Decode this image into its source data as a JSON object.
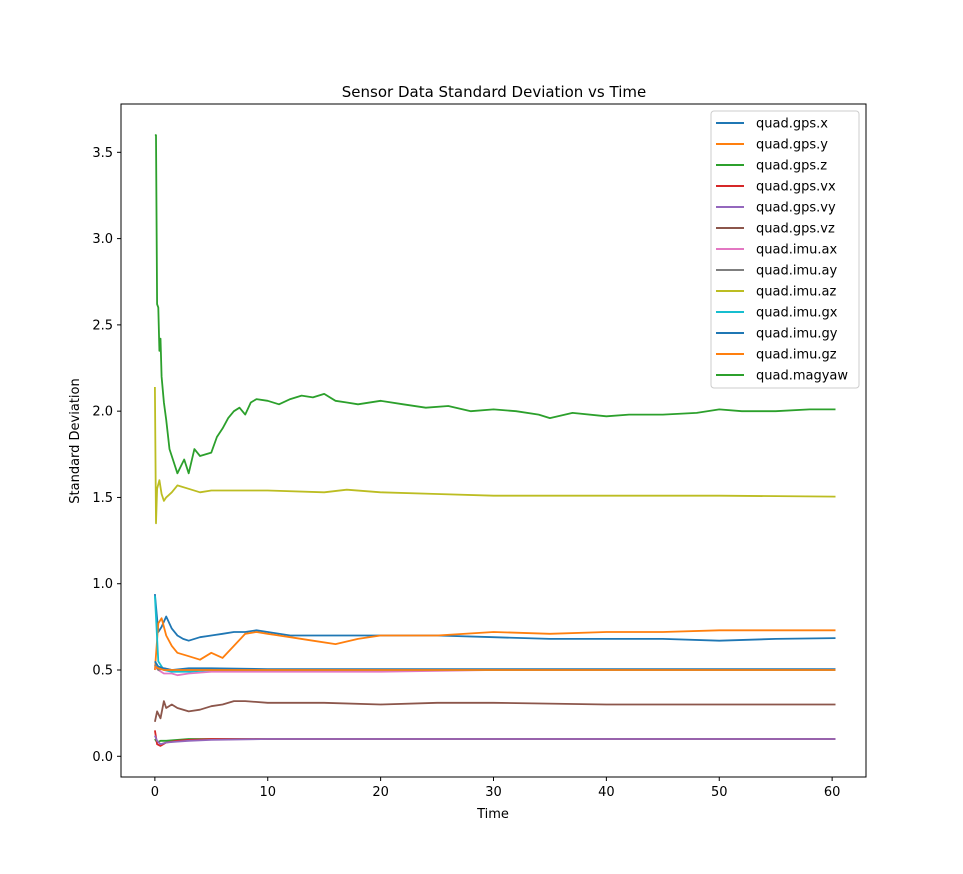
{
  "chart_data": {
    "type": "line",
    "title": "Sensor Data Standard Deviation vs Time",
    "xlabel": "Time",
    "ylabel": "Standard Deviation",
    "xlim": [
      -3,
      63
    ],
    "ylim": [
      -0.12,
      3.78
    ],
    "xticks": [
      0,
      10,
      20,
      30,
      40,
      50,
      60
    ],
    "yticks": [
      0.0,
      0.5,
      1.0,
      1.5,
      2.0,
      2.5,
      3.0,
      3.5
    ],
    "xtick_labels": [
      "0",
      "10",
      "20",
      "30",
      "40",
      "50",
      "60"
    ],
    "ytick_labels": [
      "0.0",
      "0.5",
      "1.0",
      "1.5",
      "2.0",
      "2.5",
      "3.0",
      "3.5"
    ],
    "grid": false,
    "legend_position": "top-right",
    "series": [
      {
        "name": "quad.gps.x",
        "color": "#1f77b4",
        "x": [
          0,
          0.3,
          0.6,
          1,
          1.5,
          2,
          2.5,
          3,
          4,
          5,
          6,
          7,
          8,
          9,
          10,
          12,
          15,
          20,
          25,
          30,
          35,
          40,
          45,
          50,
          55,
          60.3
        ],
        "y": [
          0.94,
          0.72,
          0.75,
          0.81,
          0.74,
          0.7,
          0.68,
          0.67,
          0.69,
          0.7,
          0.71,
          0.72,
          0.72,
          0.73,
          0.72,
          0.7,
          0.7,
          0.7,
          0.7,
          0.69,
          0.68,
          0.68,
          0.68,
          0.67,
          0.68,
          0.685
        ]
      },
      {
        "name": "quad.gps.y",
        "color": "#ff7f0e",
        "x": [
          0,
          0.3,
          0.6,
          1,
          1.5,
          2,
          3,
          4,
          5,
          6,
          7,
          8,
          9,
          10,
          12,
          14,
          16,
          18,
          20,
          25,
          30,
          35,
          40,
          45,
          50,
          55,
          60.3
        ],
        "y": [
          0.5,
          0.77,
          0.8,
          0.7,
          0.64,
          0.6,
          0.58,
          0.56,
          0.6,
          0.57,
          0.64,
          0.71,
          0.72,
          0.71,
          0.69,
          0.67,
          0.65,
          0.68,
          0.7,
          0.7,
          0.72,
          0.71,
          0.72,
          0.72,
          0.73,
          0.73,
          0.73
        ]
      },
      {
        "name": "quad.gps.z",
        "color": "#2ca02c",
        "x": [
          0,
          0.2,
          0.5,
          1,
          2,
          3,
          5,
          10,
          20,
          30,
          40,
          50,
          60.3
        ],
        "y": [
          0.1,
          0.08,
          0.09,
          0.09,
          0.095,
          0.1,
          0.1,
          0.1,
          0.1,
          0.1,
          0.1,
          0.1,
          0.1
        ]
      },
      {
        "name": "quad.gps.vx",
        "color": "#d62728",
        "x": [
          0,
          0.2,
          0.5,
          1,
          2,
          3,
          5,
          10,
          20,
          30,
          40,
          50,
          60.3
        ],
        "y": [
          0.15,
          0.07,
          0.06,
          0.08,
          0.09,
          0.095,
          0.1,
          0.1,
          0.1,
          0.1,
          0.1,
          0.1,
          0.1
        ]
      },
      {
        "name": "quad.gps.vy",
        "color": "#9467bd",
        "x": [
          0,
          0.2,
          0.5,
          1,
          2,
          3,
          5,
          10,
          20,
          30,
          40,
          50,
          60.3
        ],
        "y": [
          0.12,
          0.09,
          0.07,
          0.08,
          0.085,
          0.09,
          0.095,
          0.1,
          0.1,
          0.1,
          0.1,
          0.1,
          0.1
        ]
      },
      {
        "name": "quad.gps.vz",
        "color": "#8c564b",
        "x": [
          0,
          0.2,
          0.5,
          0.8,
          1,
          1.5,
          2,
          3,
          4,
          5,
          6,
          7,
          8,
          10,
          15,
          20,
          25,
          30,
          40,
          50,
          60.3
        ],
        "y": [
          0.2,
          0.26,
          0.22,
          0.32,
          0.28,
          0.3,
          0.28,
          0.26,
          0.27,
          0.29,
          0.3,
          0.32,
          0.32,
          0.31,
          0.31,
          0.3,
          0.31,
          0.31,
          0.3,
          0.3,
          0.3
        ]
      },
      {
        "name": "quad.imu.ax",
        "color": "#e377c2",
        "x": [
          0,
          0.3,
          0.8,
          1.5,
          2,
          3,
          5,
          10,
          20,
          30,
          40,
          50,
          60.3
        ],
        "y": [
          0.52,
          0.5,
          0.48,
          0.48,
          0.47,
          0.48,
          0.49,
          0.49,
          0.49,
          0.5,
          0.5,
          0.5,
          0.5
        ]
      },
      {
        "name": "quad.imu.ay",
        "color": "#7f7f7f",
        "x": [
          0,
          0.3,
          0.8,
          1.5,
          3,
          5,
          10,
          20,
          30,
          40,
          50,
          60.3
        ],
        "y": [
          0.53,
          0.5,
          0.51,
          0.5,
          0.5,
          0.5,
          0.5,
          0.5,
          0.5,
          0.5,
          0.5,
          0.5
        ]
      },
      {
        "name": "quad.imu.az",
        "color": "#bcbd22",
        "x": [
          0,
          0.1,
          0.2,
          0.4,
          0.6,
          0.8,
          1,
          1.5,
          2,
          3,
          4,
          5,
          7,
          10,
          15,
          17,
          20,
          25,
          30,
          40,
          50,
          60.3
        ],
        "y": [
          2.14,
          1.35,
          1.55,
          1.6,
          1.52,
          1.48,
          1.5,
          1.53,
          1.57,
          1.55,
          1.53,
          1.54,
          1.54,
          1.54,
          1.53,
          1.545,
          1.53,
          1.52,
          1.51,
          1.51,
          1.51,
          1.505
        ]
      },
      {
        "name": "quad.imu.gx",
        "color": "#17becf",
        "x": [
          0,
          0.3,
          0.8,
          1.5,
          3,
          5,
          10,
          20,
          30,
          40,
          50,
          60.3
        ],
        "y": [
          0.93,
          0.55,
          0.5,
          0.49,
          0.49,
          0.5,
          0.5,
          0.5,
          0.5,
          0.5,
          0.5,
          0.5
        ]
      },
      {
        "name": "quad.imu.gy",
        "color": "#1f77b4",
        "x": [
          0,
          0.3,
          0.8,
          1.5,
          3,
          5,
          10,
          20,
          30,
          40,
          50,
          60.3
        ],
        "y": [
          0.55,
          0.52,
          0.51,
          0.5,
          0.51,
          0.51,
          0.505,
          0.505,
          0.505,
          0.505,
          0.505,
          0.505
        ]
      },
      {
        "name": "quad.imu.gz",
        "color": "#ff7f0e",
        "x": [
          0,
          0.3,
          0.8,
          1.5,
          3,
          5,
          10,
          20,
          30,
          40,
          50,
          60.3
        ],
        "y": [
          0.52,
          0.51,
          0.5,
          0.5,
          0.5,
          0.5,
          0.5,
          0.5,
          0.5,
          0.5,
          0.5,
          0.5
        ]
      },
      {
        "name": "quad.magyaw",
        "color": "#2ca02c",
        "x": [
          0,
          0.1,
          0.2,
          0.3,
          0.4,
          0.5,
          0.6,
          0.8,
          1,
          1.3,
          1.6,
          2,
          2.3,
          2.6,
          3,
          3.5,
          4,
          5,
          5.5,
          6,
          6.5,
          7,
          7.5,
          8,
          8.5,
          9,
          10,
          11,
          12,
          13,
          14,
          15,
          16,
          17,
          18,
          20,
          22,
          24,
          26,
          28,
          30,
          32,
          34,
          35,
          37,
          40,
          42,
          45,
          48,
          50,
          52,
          55,
          58,
          60.3
        ],
        "y": [
          3.6,
          3.6,
          2.62,
          2.6,
          2.35,
          2.42,
          2.2,
          2.05,
          1.95,
          1.78,
          1.72,
          1.64,
          1.68,
          1.72,
          1.64,
          1.78,
          1.74,
          1.76,
          1.85,
          1.9,
          1.96,
          2.0,
          2.02,
          1.98,
          2.05,
          2.07,
          2.06,
          2.04,
          2.07,
          2.09,
          2.08,
          2.1,
          2.06,
          2.05,
          2.04,
          2.06,
          2.04,
          2.02,
          2.03,
          2.0,
          2.01,
          2.0,
          1.98,
          1.96,
          1.99,
          1.97,
          1.98,
          1.98,
          1.99,
          2.01,
          2.0,
          2.0,
          2.01,
          2.01
        ]
      }
    ]
  }
}
